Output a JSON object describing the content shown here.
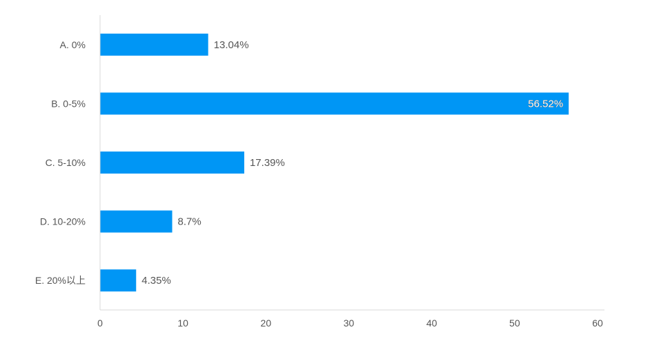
{
  "chart_data": {
    "type": "bar",
    "orientation": "horizontal",
    "categories": [
      "A. 0%",
      "B. 0-5%",
      "C. 5-10%",
      "D. 10-20%",
      "E. 20%以上"
    ],
    "values": [
      13.04,
      56.52,
      17.39,
      8.7,
      4.35
    ],
    "value_labels": [
      "13.04%",
      "56.52%",
      "17.39%",
      "8.7%",
      "4.35%"
    ],
    "xlim": [
      0,
      60
    ],
    "xticks": [
      "0",
      "10",
      "20",
      "30",
      "40",
      "50",
      "60"
    ],
    "grid": false,
    "bar_color": "#0096f5",
    "axis_color": "#d9d9d9",
    "text_color": "#555555"
  }
}
